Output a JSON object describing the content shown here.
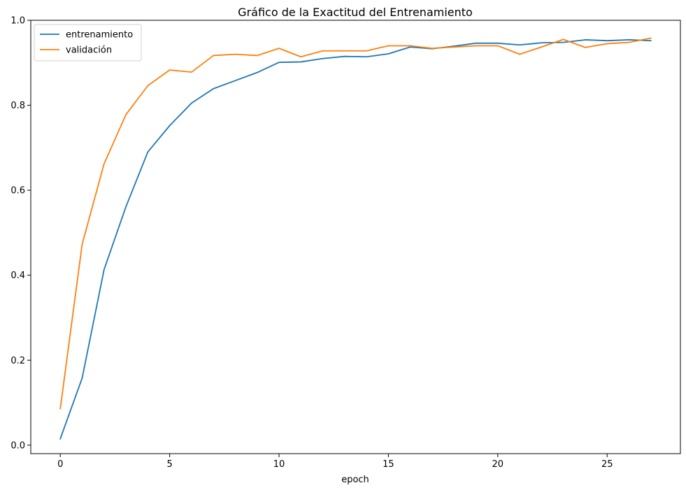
{
  "chart_data": {
    "type": "line",
    "title": "Gráfico de la Exactitud del Entrenamiento",
    "xlabel": "epoch",
    "ylabel": "",
    "xlim": [
      -1.35,
      28.35
    ],
    "ylim": [
      -0.02,
      1.0
    ],
    "xticks": [
      0,
      5,
      10,
      15,
      20,
      25
    ],
    "yticks": [
      0.0,
      0.2,
      0.4,
      0.6,
      0.8,
      1.0
    ],
    "xtick_labels": [
      "0",
      "5",
      "10",
      "15",
      "20",
      "25"
    ],
    "ytick_labels": [
      "0.0",
      "0.2",
      "0.4",
      "0.6",
      "0.8",
      "1.0"
    ],
    "grid": false,
    "legend_position": "top-left",
    "x": [
      0,
      1,
      2,
      3,
      4,
      5,
      6,
      7,
      8,
      9,
      10,
      11,
      12,
      13,
      14,
      15,
      16,
      17,
      18,
      19,
      20,
      21,
      22,
      23,
      24,
      25,
      26,
      27
    ],
    "series": [
      {
        "name": "entrenamiento",
        "color": "#1f77b4",
        "values": [
          0.015,
          0.158,
          0.413,
          0.561,
          0.69,
          0.752,
          0.805,
          0.839,
          0.858,
          0.877,
          0.901,
          0.902,
          0.91,
          0.915,
          0.914,
          0.921,
          0.937,
          0.933,
          0.939,
          0.946,
          0.946,
          0.942,
          0.947,
          0.948,
          0.954,
          0.952,
          0.954,
          0.952
        ]
      },
      {
        "name": "validación",
        "color": "#ff7f0e",
        "values": [
          0.086,
          0.473,
          0.662,
          0.778,
          0.846,
          0.883,
          0.878,
          0.917,
          0.92,
          0.917,
          0.934,
          0.914,
          0.928,
          0.928,
          0.928,
          0.94,
          0.94,
          0.934,
          0.937,
          0.94,
          0.94,
          0.92,
          0.937,
          0.955,
          0.936,
          0.945,
          0.948,
          0.958
        ]
      }
    ]
  }
}
